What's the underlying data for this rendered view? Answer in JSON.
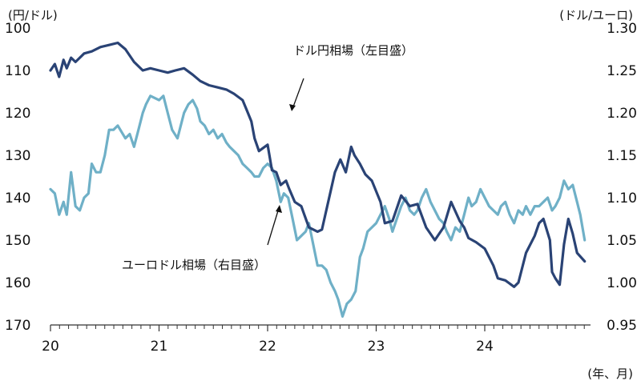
{
  "chart_data": {
    "type": "line",
    "left_axis_unit": "(円/ドル)",
    "right_axis_unit": "(ドル/ユーロ)",
    "x_axis_unit": "(年、月)",
    "left_ticks": [
      "100",
      "110",
      "120",
      "130",
      "140",
      "150",
      "160",
      "170"
    ],
    "right_ticks": [
      "1.30",
      "1.25",
      "1.20",
      "1.15",
      "1.10",
      "1.05",
      "1.00",
      "0.95"
    ],
    "x_ticks": [
      "20",
      "21",
      "22",
      "23",
      "24"
    ],
    "left_axis": {
      "min": 100,
      "max": 170,
      "inverted": true
    },
    "right_axis": {
      "min": 0.95,
      "max": 1.3
    },
    "x_axis": {
      "start_year": 2020,
      "end_year": 2024.92
    },
    "grid": false,
    "series": [
      {
        "name": "ドル円相場（左目盛）",
        "axis": "left",
        "color": "#2a4375",
        "x": [
          2020.0,
          2020.04,
          2020.08,
          2020.12,
          2020.15,
          2020.19,
          2020.23,
          2020.27,
          2020.31,
          2020.38,
          2020.46,
          2020.54,
          2020.62,
          2020.69,
          2020.77,
          2020.85,
          2020.92,
          2021.0,
          2021.08,
          2021.15,
          2021.23,
          2021.31,
          2021.38,
          2021.46,
          2021.54,
          2021.62,
          2021.69,
          2021.77,
          2021.81,
          2021.85,
          2021.88,
          2021.92,
          2022.0,
          2022.04,
          2022.08,
          2022.12,
          2022.17,
          2022.2,
          2022.25,
          2022.31,
          2022.38,
          2022.46,
          2022.5,
          2022.58,
          2022.62,
          2022.67,
          2022.72,
          2022.77,
          2022.8,
          2022.85,
          2022.9,
          2022.96,
          2023.04,
          2023.08,
          2023.15,
          2023.23,
          2023.31,
          2023.38,
          2023.46,
          2023.54,
          2023.62,
          2023.69,
          2023.77,
          2023.81,
          2023.85,
          2023.92,
          2024.0,
          2024.08,
          2024.12,
          2024.19,
          2024.27,
          2024.31,
          2024.38,
          2024.46,
          2024.5,
          2024.54,
          2024.6,
          2024.62,
          2024.65,
          2024.69,
          2024.73,
          2024.77,
          2024.81,
          2024.85,
          2024.92
        ],
        "values": [
          110,
          108.5,
          111.5,
          107.5,
          109.5,
          107,
          108,
          107,
          106,
          105.5,
          104.5,
          104,
          103.5,
          105,
          108,
          110,
          109.5,
          110,
          110.5,
          110,
          109.5,
          111,
          112.5,
          113.5,
          114,
          114.5,
          115.5,
          117,
          119.5,
          122,
          126,
          129,
          127.5,
          133.5,
          134,
          137,
          136,
          138,
          141,
          142,
          147,
          148,
          147.5,
          138.5,
          134,
          131,
          134,
          128,
          130,
          132,
          134.5,
          136,
          141,
          146,
          145.5,
          139.5,
          142,
          141.5,
          147,
          150,
          147,
          141,
          145.5,
          147,
          149.5,
          150.5,
          152,
          156,
          159,
          159.5,
          161,
          160,
          153,
          149,
          146,
          145,
          150,
          157.5,
          159,
          160.5,
          151,
          145,
          148.5,
          153,
          155
        ]
      },
      {
        "name": "ユーロドル相場（右目盛）",
        "axis": "right",
        "color": "#6fb0c7",
        "x": [
          2020.0,
          2020.04,
          2020.08,
          2020.12,
          2020.15,
          2020.19,
          2020.23,
          2020.27,
          2020.31,
          2020.35,
          2020.38,
          2020.42,
          2020.46,
          2020.5,
          2020.54,
          2020.58,
          2020.62,
          2020.69,
          2020.73,
          2020.77,
          2020.81,
          2020.85,
          2020.88,
          2020.92,
          2021.0,
          2021.04,
          2021.08,
          2021.12,
          2021.17,
          2021.23,
          2021.27,
          2021.31,
          2021.35,
          2021.38,
          2021.42,
          2021.46,
          2021.5,
          2021.54,
          2021.58,
          2021.62,
          2021.65,
          2021.69,
          2021.73,
          2021.77,
          2021.81,
          2021.85,
          2021.88,
          2021.92,
          2021.96,
          2022.0,
          2022.04,
          2022.08,
          2022.12,
          2022.15,
          2022.19,
          2022.23,
          2022.27,
          2022.31,
          2022.35,
          2022.38,
          2022.42,
          2022.46,
          2022.5,
          2022.54,
          2022.58,
          2022.62,
          2022.65,
          2022.69,
          2022.73,
          2022.77,
          2022.81,
          2022.85,
          2022.88,
          2022.92,
          2022.96,
          2023.0,
          2023.04,
          2023.08,
          2023.12,
          2023.15,
          2023.19,
          2023.23,
          2023.27,
          2023.31,
          2023.35,
          2023.38,
          2023.42,
          2023.46,
          2023.5,
          2023.54,
          2023.58,
          2023.62,
          2023.65,
          2023.69,
          2023.73,
          2023.77,
          2023.81,
          2023.85,
          2023.88,
          2023.92,
          2023.96,
          2024.0,
          2024.04,
          2024.08,
          2024.12,
          2024.15,
          2024.19,
          2024.23,
          2024.27,
          2024.31,
          2024.35,
          2024.38,
          2024.42,
          2024.46,
          2024.5,
          2024.54,
          2024.58,
          2024.62,
          2024.65,
          2024.69,
          2024.73,
          2024.77,
          2024.81,
          2024.85,
          2024.88,
          2024.92
        ],
        "values": [
          1.11,
          1.105,
          1.08,
          1.095,
          1.08,
          1.13,
          1.09,
          1.085,
          1.1,
          1.105,
          1.14,
          1.13,
          1.13,
          1.15,
          1.18,
          1.18,
          1.185,
          1.17,
          1.175,
          1.16,
          1.18,
          1.2,
          1.21,
          1.22,
          1.215,
          1.22,
          1.2,
          1.18,
          1.17,
          1.2,
          1.21,
          1.215,
          1.205,
          1.19,
          1.185,
          1.175,
          1.18,
          1.17,
          1.175,
          1.165,
          1.16,
          1.155,
          1.15,
          1.14,
          1.135,
          1.13,
          1.125,
          1.125,
          1.135,
          1.14,
          1.135,
          1.12,
          1.095,
          1.105,
          1.1,
          1.075,
          1.05,
          1.055,
          1.06,
          1.07,
          1.045,
          1.02,
          1.02,
          1.015,
          1.0,
          0.99,
          0.98,
          0.96,
          0.975,
          0.98,
          0.99,
          1.03,
          1.04,
          1.06,
          1.065,
          1.07,
          1.08,
          1.09,
          1.075,
          1.06,
          1.075,
          1.09,
          1.1,
          1.085,
          1.08,
          1.085,
          1.1,
          1.11,
          1.095,
          1.085,
          1.075,
          1.07,
          1.06,
          1.05,
          1.065,
          1.06,
          1.08,
          1.1,
          1.09,
          1.095,
          1.11,
          1.1,
          1.09,
          1.085,
          1.08,
          1.09,
          1.095,
          1.08,
          1.07,
          1.085,
          1.08,
          1.09,
          1.08,
          1.09,
          1.09,
          1.095,
          1.1,
          1.085,
          1.09,
          1.1,
          1.12,
          1.11,
          1.115,
          1.095,
          1.08,
          1.05
        ]
      }
    ]
  }
}
